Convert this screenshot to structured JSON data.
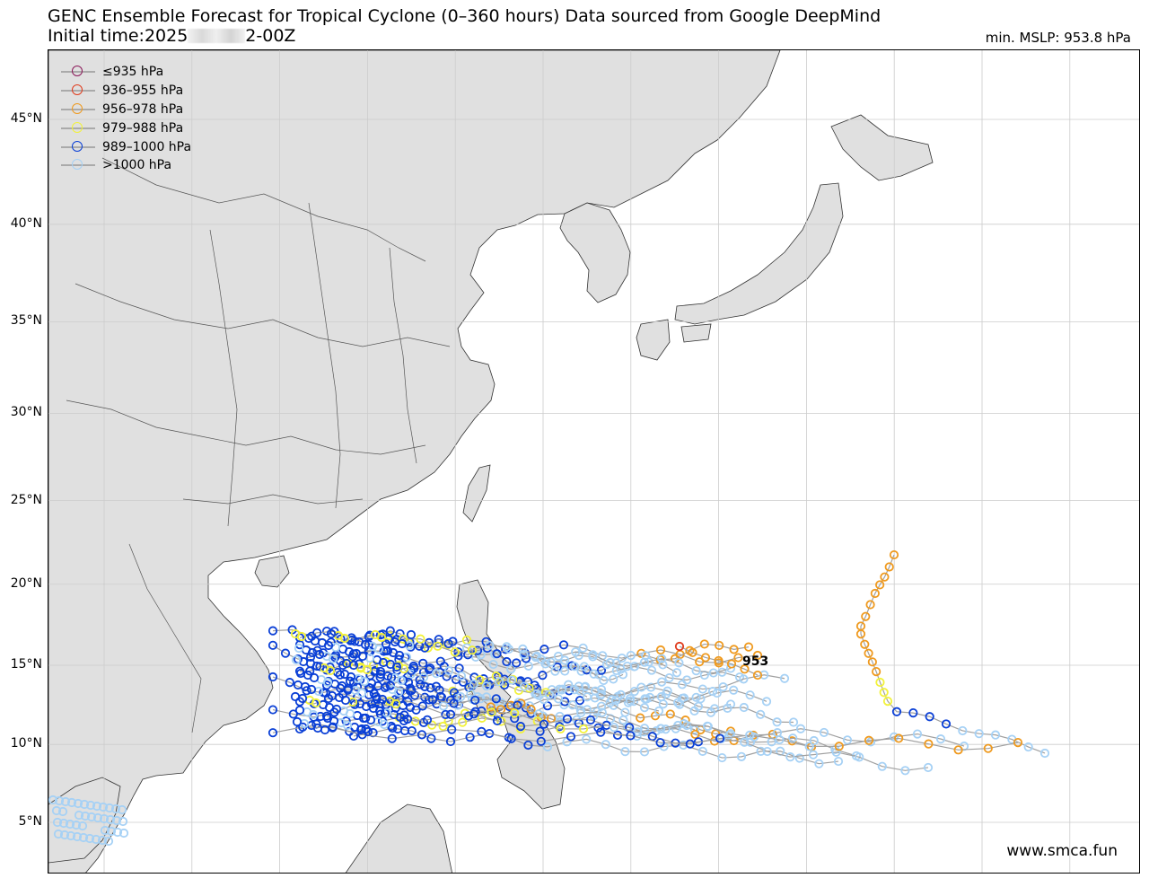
{
  "figure": {
    "title": "GENC Ensemble Forecast for Tropical Cyclone (0–360 hours) Data sourced from Google DeepMind",
    "subtitle_prefix": "Initial time:2025",
    "subtitle_suffix": "2-00Z",
    "min_mslp": "min. MSLP: 953.8 hPa",
    "credit": "www.smca.fun",
    "callout": "953"
  },
  "map": {
    "land_color": "#e0e0e0",
    "ocean_color": "#ffffff",
    "border_color": "#555555",
    "grid_color": "#cccccc",
    "lat_labels": [
      "45°N",
      "40°N",
      "35°N",
      "30°N",
      "25°N",
      "20°N",
      "15°N",
      "10°N",
      "5°N"
    ],
    "lat_values": [
      45,
      40,
      35,
      30,
      25,
      20,
      15,
      10,
      5
    ]
  },
  "legend": [
    {
      "label": "≤935 hPa",
      "color": "#8b1a5a"
    },
    {
      "label": "936–955 hPa",
      "color": "#e03c1e"
    },
    {
      "label": "956–978 hPa",
      "color": "#ef9a1f"
    },
    {
      "label": "979–988 hPa",
      "color": "#f2f23a"
    },
    {
      "label": "989–1000 hPa",
      "color": "#0a3fd6"
    },
    {
      "label": ">1000 hPa",
      "color": "#a6d1f5"
    }
  ],
  "track_line_color": "#a0a0a0"
}
